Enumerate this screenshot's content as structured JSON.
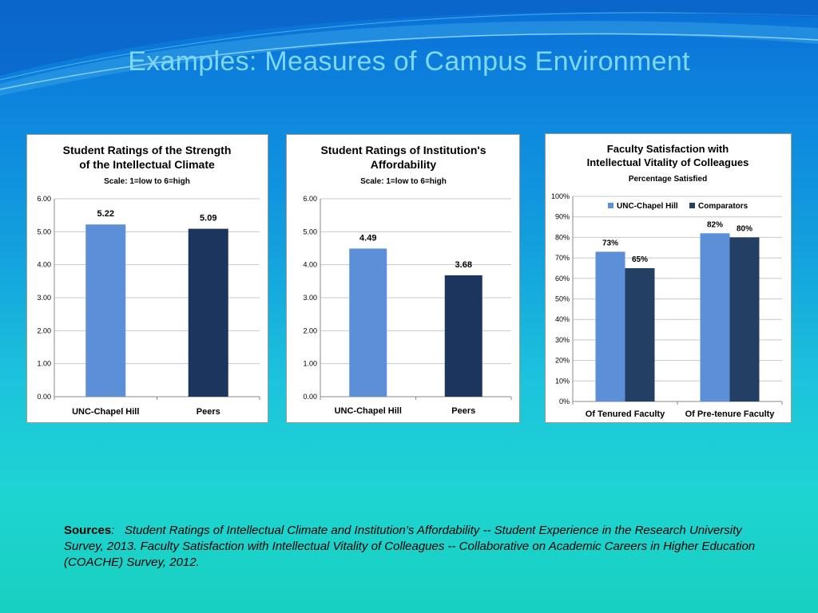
{
  "slide": {
    "title": "Examples:  Measures of Campus Environment",
    "sources_label": "Sources",
    "sources_colon": ":",
    "sources_text": "Student Ratings of Intellectual Climate and Institution’s Affordability -- Student Experience in the Research University Survey, 2013.   Faculty Satisfaction with Intellectual Vitality of Colleagues -- Collaborative on Academic Careers in Higher Education (COACHE) Survey, 2012."
  },
  "colors": {
    "light_bar": "#5b8fd8",
    "dark_bar": "#1c355e",
    "dark_bar2": "#243f64"
  },
  "chart_data": [
    {
      "type": "bar",
      "title": "Student Ratings of the Strength of the Intellectual Climate",
      "title_lines": [
        "Student Ratings of the Strength",
        "of the Intellectual Climate"
      ],
      "subtitle": "Scale:  1=low to 6=high",
      "categories": [
        "UNC-Chapel Hill",
        "Peers"
      ],
      "values": [
        5.22,
        5.09
      ],
      "value_labels": [
        "5.22",
        "5.09"
      ],
      "ylim": [
        0,
        6
      ],
      "yticks": [
        "0.00",
        "1.00",
        "2.00",
        "3.00",
        "4.00",
        "5.00",
        "6.00"
      ],
      "grid": true
    },
    {
      "type": "bar",
      "title": "Student Ratings of Institution's Affordability",
      "title_lines": [
        "Student Ratings of Institution's",
        "Affordability"
      ],
      "subtitle": "Scale:  1=low to 6=high",
      "categories": [
        "UNC-Chapel Hill",
        "Peers"
      ],
      "values": [
        4.49,
        3.68
      ],
      "value_labels": [
        "4.49",
        "3.68"
      ],
      "ylim": [
        0,
        6
      ],
      "yticks": [
        "0.00",
        "1.00",
        "2.00",
        "3.00",
        "4.00",
        "5.00",
        "6.00"
      ],
      "grid": true
    },
    {
      "type": "bar",
      "title": "Faculty Satisfaction with Intellectual Vitality of Colleagues",
      "title_lines": [
        "Faculty Satisfaction with",
        "Intellectual Vitality of Colleagues"
      ],
      "subtitle": "Percentage Satisfied",
      "categories": [
        "Of Tenured Faculty",
        "Of Pre-tenure Faculty"
      ],
      "series": [
        {
          "name": "UNC-Chapel Hill",
          "values": [
            73,
            82
          ],
          "value_labels": [
            "73%",
            "82%"
          ]
        },
        {
          "name": "Comparators",
          "values": [
            65,
            80
          ],
          "value_labels": [
            "65%",
            "80%"
          ]
        }
      ],
      "ylim": [
        0,
        100
      ],
      "yticks": [
        "0%",
        "10%",
        "20%",
        "30%",
        "40%",
        "50%",
        "60%",
        "70%",
        "80%",
        "90%",
        "100%"
      ],
      "legend": "top",
      "grid": true
    }
  ]
}
